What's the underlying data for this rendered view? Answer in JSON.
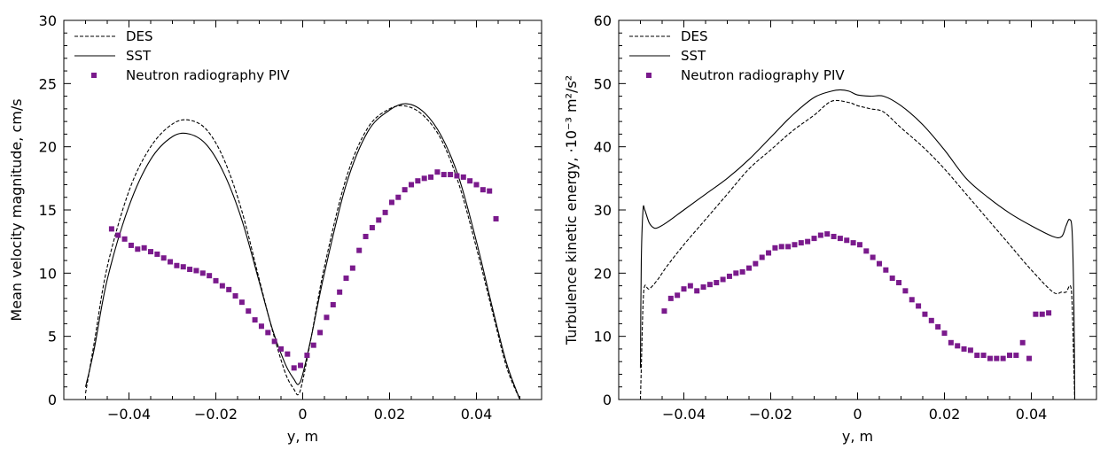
{
  "chart_data": [
    {
      "type": "line",
      "xlabel": "y, m",
      "ylabel": "Mean velocity magnitude, cm/s",
      "xlim": [
        -0.055,
        0.055
      ],
      "ylim": [
        0,
        30
      ],
      "x_ticks": [
        -0.04,
        -0.02,
        0,
        0.02,
        0.04
      ],
      "x_tick_labels": [
        "−0.04",
        "−0.02",
        "0",
        "0.02",
        "0.04"
      ],
      "y_ticks": [
        0,
        5,
        10,
        15,
        20,
        25,
        30
      ],
      "y_tick_labels": [
        "0",
        "5",
        "10",
        "15",
        "20",
        "25",
        "30"
      ],
      "grid": false,
      "legend_position": "top-left",
      "series": [
        {
          "name": "DES",
          "style": "dashed",
          "color": "#000000",
          "x": [
            -0.05,
            -0.048,
            -0.045,
            -0.04,
            -0.035,
            -0.03,
            -0.026,
            -0.022,
            -0.018,
            -0.014,
            -0.01,
            -0.007,
            -0.004,
            -0.002,
            -0.001,
            0.0,
            0.002,
            0.005,
            0.01,
            0.015,
            0.02,
            0.024,
            0.028,
            0.032,
            0.036,
            0.04,
            0.044,
            0.047,
            0.05
          ],
          "y": [
            0.5,
            4.5,
            10.5,
            16.5,
            20.0,
            21.8,
            22.1,
            21.3,
            18.9,
            14.9,
            9.5,
            5.5,
            2.1,
            0.8,
            0.4,
            1.5,
            5.0,
            10.5,
            17.5,
            21.5,
            23.0,
            23.2,
            22.4,
            20.5,
            17.0,
            12.0,
            6.5,
            2.5,
            0.0
          ]
        },
        {
          "name": "SST",
          "style": "solid",
          "color": "#000000",
          "x": [
            -0.05,
            -0.048,
            -0.045,
            -0.04,
            -0.035,
            -0.03,
            -0.026,
            -0.022,
            -0.018,
            -0.014,
            -0.01,
            -0.007,
            -0.004,
            -0.002,
            -0.001,
            0.0,
            0.002,
            0.005,
            0.01,
            0.015,
            0.02,
            0.024,
            0.028,
            0.032,
            0.036,
            0.04,
            0.044,
            0.047,
            0.05
          ],
          "y": [
            1.0,
            4.0,
            9.5,
            15.3,
            19.0,
            20.8,
            21.0,
            20.1,
            17.8,
            14.2,
            9.3,
            5.6,
            2.8,
            1.6,
            1.2,
            2.0,
            5.0,
            10.0,
            17.0,
            21.2,
            22.9,
            23.4,
            22.7,
            20.8,
            17.5,
            12.5,
            6.8,
            2.8,
            0.0
          ]
        },
        {
          "name": "Neutron radiography PIV",
          "style": "markers",
          "color": "#7a1a8c",
          "x": [
            -0.044,
            -0.0425,
            -0.041,
            -0.0395,
            -0.038,
            -0.0365,
            -0.035,
            -0.0335,
            -0.032,
            -0.0305,
            -0.029,
            -0.0275,
            -0.026,
            -0.0245,
            -0.023,
            -0.0215,
            -0.02,
            -0.0185,
            -0.017,
            -0.0155,
            -0.014,
            -0.0125,
            -0.011,
            -0.0095,
            -0.008,
            -0.0065,
            -0.005,
            -0.0035,
            -0.002,
            -0.0005,
            0.001,
            0.0025,
            0.004,
            0.0055,
            0.007,
            0.0085,
            0.01,
            0.0115,
            0.013,
            0.0145,
            0.016,
            0.0175,
            0.019,
            0.0205,
            0.022,
            0.0235,
            0.025,
            0.0265,
            0.028,
            0.0295,
            0.031,
            0.0325,
            0.034,
            0.0355,
            0.037,
            0.0385,
            0.04,
            0.0415,
            0.043,
            0.0445
          ],
          "y": [
            13.5,
            13.0,
            12.7,
            12.2,
            11.9,
            12.0,
            11.7,
            11.5,
            11.2,
            10.9,
            10.6,
            10.5,
            10.3,
            10.2,
            10.0,
            9.8,
            9.4,
            9.0,
            8.7,
            8.2,
            7.7,
            7.0,
            6.3,
            5.8,
            5.3,
            4.6,
            4.0,
            3.6,
            2.5,
            2.7,
            3.5,
            4.3,
            5.3,
            6.5,
            7.5,
            8.5,
            9.6,
            10.4,
            11.8,
            12.9,
            13.6,
            14.2,
            14.8,
            15.6,
            16.0,
            16.6,
            17.0,
            17.3,
            17.5,
            17.6,
            18.0,
            17.8,
            17.8,
            17.7,
            17.6,
            17.3,
            17.0,
            16.6,
            16.5,
            14.3
          ]
        }
      ]
    },
    {
      "type": "line",
      "xlabel": "y, m",
      "ylabel": "Turbulence kinetic energy, ·10⁻³ m²/s²",
      "xlim": [
        -0.055,
        0.055
      ],
      "ylim": [
        0,
        60
      ],
      "x_ticks": [
        -0.04,
        -0.02,
        0,
        0.02,
        0.04
      ],
      "x_tick_labels": [
        "−0.04",
        "−0.02",
        "0",
        "0.02",
        "0.04"
      ],
      "y_ticks": [
        0,
        10,
        20,
        30,
        40,
        50,
        60
      ],
      "y_tick_labels": [
        "0",
        "10",
        "20",
        "30",
        "40",
        "50",
        "60"
      ],
      "grid": false,
      "legend_position": "top-left",
      "series": [
        {
          "name": "DES",
          "style": "dashed",
          "color": "#000000",
          "x": [
            -0.05,
            -0.0498,
            -0.0494,
            -0.049,
            -0.048,
            -0.046,
            -0.044,
            -0.04,
            -0.035,
            -0.03,
            -0.025,
            -0.02,
            -0.015,
            -0.01,
            -0.006,
            -0.002,
            0.0,
            0.003,
            0.006,
            0.01,
            0.015,
            0.02,
            0.025,
            0.03,
            0.035,
            0.04,
            0.045,
            0.047,
            0.048,
            0.049,
            0.0494,
            0.0498,
            0.05
          ],
          "y": [
            0.0,
            5.0,
            15.0,
            18.0,
            17.5,
            19.0,
            21.0,
            24.5,
            28.5,
            32.5,
            36.5,
            39.5,
            42.5,
            45.0,
            47.2,
            47.0,
            46.5,
            46.0,
            45.5,
            43.0,
            40.0,
            36.5,
            32.5,
            28.5,
            24.5,
            20.5,
            17.0,
            17.0,
            17.0,
            18.0,
            15.0,
            5.0,
            0.0
          ]
        },
        {
          "name": "SST",
          "style": "solid",
          "color": "#000000",
          "x": [
            -0.05,
            -0.0498,
            -0.0494,
            -0.049,
            -0.048,
            -0.047,
            -0.046,
            -0.044,
            -0.04,
            -0.035,
            -0.03,
            -0.025,
            -0.02,
            -0.015,
            -0.01,
            -0.006,
            -0.004,
            -0.002,
            0.0,
            0.003,
            0.006,
            0.01,
            0.015,
            0.02,
            0.025,
            0.03,
            0.035,
            0.04,
            0.045,
            0.047,
            0.048,
            0.0488,
            0.0494,
            0.0498,
            0.05
          ],
          "y": [
            5.0,
            22.0,
            30.0,
            30.0,
            28.0,
            27.2,
            27.2,
            28.0,
            30.0,
            32.5,
            35.0,
            38.0,
            41.5,
            45.0,
            47.8,
            48.8,
            49.0,
            48.8,
            48.2,
            48.0,
            48.0,
            46.5,
            43.5,
            39.5,
            35.0,
            32.0,
            29.5,
            27.5,
            25.8,
            25.8,
            27.5,
            28.5,
            26.5,
            15.0,
            0.0
          ]
        },
        {
          "name": "Neutron radiography PIV",
          "style": "markers",
          "color": "#7a1a8c",
          "x": [
            -0.0445,
            -0.043,
            -0.0415,
            -0.04,
            -0.0385,
            -0.037,
            -0.0355,
            -0.034,
            -0.0325,
            -0.031,
            -0.0295,
            -0.028,
            -0.0265,
            -0.025,
            -0.0235,
            -0.022,
            -0.0205,
            -0.019,
            -0.0175,
            -0.016,
            -0.0145,
            -0.013,
            -0.0115,
            -0.01,
            -0.0085,
            -0.007,
            -0.0055,
            -0.004,
            -0.0025,
            -0.001,
            0.0005,
            0.002,
            0.0035,
            0.005,
            0.0065,
            0.008,
            0.0095,
            0.011,
            0.0125,
            0.014,
            0.0155,
            0.017,
            0.0185,
            0.02,
            0.0215,
            0.023,
            0.0245,
            0.026,
            0.0275,
            0.029,
            0.0305,
            0.032,
            0.0335,
            0.035,
            0.0365,
            0.038,
            0.0395,
            0.041,
            0.0425,
            0.044
          ],
          "y": [
            14.0,
            16.0,
            16.5,
            17.5,
            18.0,
            17.2,
            17.8,
            18.2,
            18.5,
            19.0,
            19.5,
            20.0,
            20.2,
            20.8,
            21.5,
            22.5,
            23.2,
            24.0,
            24.2,
            24.2,
            24.5,
            24.8,
            25.0,
            25.5,
            26.0,
            26.2,
            25.8,
            25.5,
            25.2,
            24.8,
            24.5,
            23.5,
            22.5,
            21.5,
            20.5,
            19.2,
            18.5,
            17.2,
            15.8,
            14.8,
            13.5,
            12.5,
            11.5,
            10.5,
            9.0,
            8.5,
            8.0,
            7.8,
            7.0,
            7.0,
            6.5,
            6.5,
            6.5,
            7.0,
            7.0,
            9.0,
            6.5,
            13.5,
            13.5,
            13.7
          ]
        }
      ]
    }
  ]
}
